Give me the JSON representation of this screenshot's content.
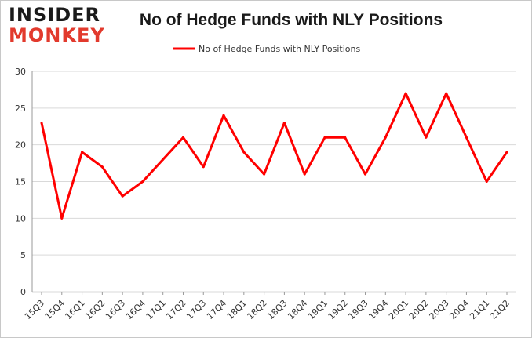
{
  "logo": {
    "line1": "INSIDER",
    "line2": "MONKEY"
  },
  "colors": {
    "series": "#ff0000",
    "grid": "#d9d9d9",
    "logo_accent": "#e23a2d"
  },
  "chart_data": {
    "type": "line",
    "title": "No of Hedge Funds with NLY Positions",
    "xlabel": "",
    "ylabel": "",
    "categories": [
      "15Q3",
      "15Q4",
      "16Q1",
      "16Q2",
      "16Q3",
      "16Q4",
      "17Q1",
      "17Q2",
      "17Q3",
      "17Q4",
      "18Q1",
      "18Q2",
      "18Q3",
      "18Q4",
      "19Q1",
      "19Q2",
      "19Q3",
      "19Q4",
      "20Q1",
      "20Q2",
      "20Q3",
      "20Q4",
      "21Q1",
      "21Q2"
    ],
    "series": [
      {
        "name": "No of Hedge Funds with NLY Positions",
        "values": [
          23,
          10,
          19,
          17,
          13,
          15,
          18,
          21,
          17,
          24,
          19,
          16,
          23,
          16,
          21,
          21,
          16,
          21,
          27,
          21,
          27,
          21,
          15,
          19
        ]
      }
    ],
    "ylim": [
      0,
      30
    ],
    "yticks": [
      0,
      5,
      10,
      15,
      20,
      25,
      30
    ],
    "grid": true,
    "legend_position": "top-center"
  }
}
